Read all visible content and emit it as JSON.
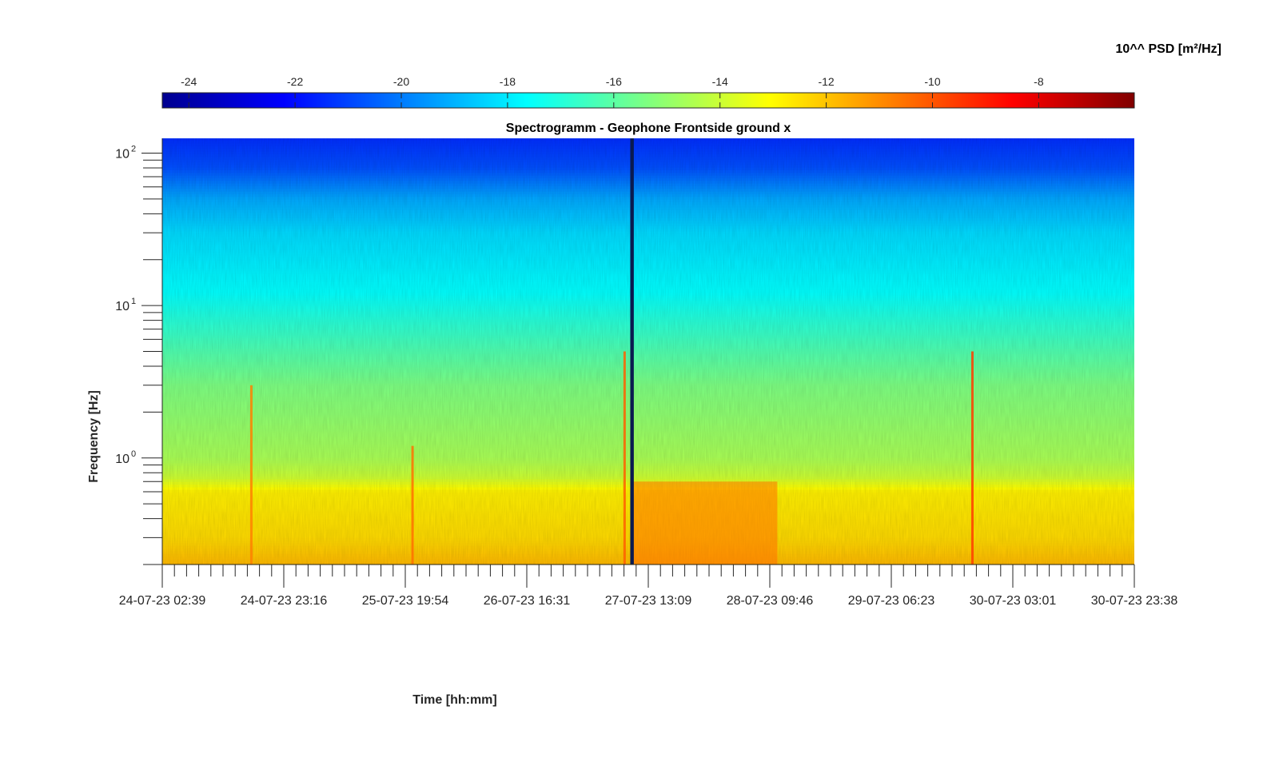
{
  "chart_data": {
    "type": "heatmap",
    "title": "Spectrogramm - Geophone Frontside ground x",
    "xlabel": "Time [hh:mm]",
    "ylabel": "Frequency [Hz]",
    "colorbar_label": "10^^ PSD [m²/Hz]",
    "colormap": "jet",
    "color_range": [
      -24.5,
      -6.2
    ],
    "colorbar_ticks": [
      "-24",
      "-22",
      "-20",
      "-18",
      "-16",
      "-14",
      "-12",
      "-10",
      "-8"
    ],
    "colorbar_tick_values": [
      -24,
      -22,
      -20,
      -18,
      -16,
      -14,
      -12,
      -10,
      -8
    ],
    "x_tick_labels": [
      "24-07-23 02:39",
      "24-07-23 23:16",
      "25-07-23 19:54",
      "26-07-23 16:31",
      "27-07-23 13:09",
      "28-07-23 09:46",
      "29-07-23 06:23",
      "30-07-23 03:01",
      "30-07-23 23:38"
    ],
    "xlim_days": [
      0,
      6.875
    ],
    "y_scale": "log",
    "ylim": [
      0.2,
      125
    ],
    "y_tick_labels": [
      {
        "base": "10",
        "exp": "0",
        "value": 1
      },
      {
        "base": "10",
        "exp": "1",
        "value": 10
      },
      {
        "base": "10",
        "exp": "2",
        "value": 100
      }
    ],
    "levels_by_frequency": [
      {
        "f": 0.2,
        "level": -11.8
      },
      {
        "f": 0.3,
        "level": -12.4
      },
      {
        "f": 0.6,
        "level": -12.8
      },
      {
        "f": 0.75,
        "level": -14.0
      },
      {
        "f": 1.0,
        "level": -14.6
      },
      {
        "f": 3.0,
        "level": -15.4
      },
      {
        "f": 6.0,
        "level": -16.5
      },
      {
        "f": 12.0,
        "level": -17.6
      },
      {
        "f": 30.0,
        "level": -18.3
      },
      {
        "f": 50.0,
        "level": -19.2
      },
      {
        "f": 80.0,
        "level": -20.8
      },
      {
        "f": 125.0,
        "level": -21.4
      }
    ],
    "events": [
      {
        "day": 0.63,
        "f_low": 0.2,
        "f_high": 3.0,
        "level": -10.8
      },
      {
        "day": 1.77,
        "f_low": 0.2,
        "f_high": 1.2,
        "level": -10.5
      },
      {
        "day": 3.27,
        "f_low": 0.2,
        "f_high": 5.0,
        "level": -10.2
      },
      {
        "day": 5.73,
        "f_low": 0.2,
        "f_high": 5.0,
        "level": -9.6
      }
    ],
    "data_gap": {
      "day_start": 3.31,
      "day_end": 3.335
    },
    "high_noise_period": {
      "day_start": 3.33,
      "day_end": 4.35,
      "f_high": 0.7,
      "level": -10.5
    }
  }
}
